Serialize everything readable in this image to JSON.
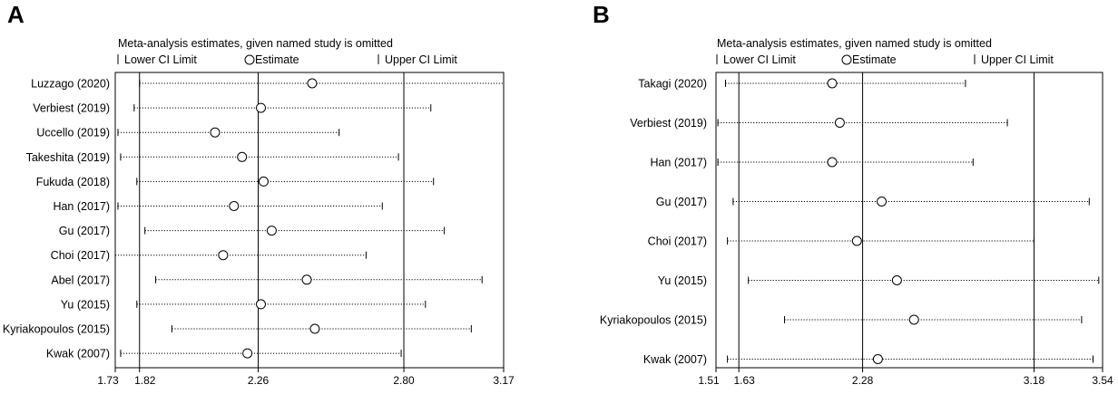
{
  "chart_data": [
    {
      "type": "forest",
      "panel_label": "A",
      "title": "Meta-analysis estimates, given named study is omitted",
      "legend": {
        "lower": "Lower CI Limit",
        "estimate": "Estimate",
        "upper": "Upper CI Limit"
      },
      "reference": {
        "lower": 1.82,
        "estimate": 2.26,
        "upper": 2.8
      },
      "xlim": [
        1.73,
        3.17
      ],
      "xticks": [
        {
          "value": 1.73,
          "label": "1.73"
        },
        {
          "value": 1.82,
          "label": "1.82"
        },
        {
          "value": 2.26,
          "label": "2.26"
        },
        {
          "value": 2.8,
          "label": "2.80"
        },
        {
          "value": 3.17,
          "label": "3.17"
        }
      ],
      "studies": [
        {
          "name": "Luzzago (2020)",
          "lower": 1.82,
          "estimate": 2.46,
          "upper": 3.17
        },
        {
          "name": "Verbiest (2019)",
          "lower": 1.8,
          "estimate": 2.27,
          "upper": 2.9
        },
        {
          "name": "Uccello (2019)",
          "lower": 1.74,
          "estimate": 2.1,
          "upper": 2.56
        },
        {
          "name": "Takeshita (2019)",
          "lower": 1.75,
          "estimate": 2.2,
          "upper": 2.78
        },
        {
          "name": "Fukuda (2018)",
          "lower": 1.81,
          "estimate": 2.28,
          "upper": 2.91
        },
        {
          "name": "Han (2017)",
          "lower": 1.74,
          "estimate": 2.17,
          "upper": 2.72
        },
        {
          "name": "Gu (2017)",
          "lower": 1.84,
          "estimate": 2.31,
          "upper": 2.95
        },
        {
          "name": "Choi (2017)",
          "lower": 1.73,
          "estimate": 2.13,
          "upper": 2.66
        },
        {
          "name": "Abel (2017)",
          "lower": 1.88,
          "estimate": 2.44,
          "upper": 3.09
        },
        {
          "name": "Yu (2015)",
          "lower": 1.81,
          "estimate": 2.27,
          "upper": 2.88
        },
        {
          "name": "Kyriakopoulos (2015)",
          "lower": 1.94,
          "estimate": 2.47,
          "upper": 3.05
        },
        {
          "name": "Kwak (2007)",
          "lower": 1.75,
          "estimate": 2.22,
          "upper": 2.79
        }
      ]
    },
    {
      "type": "forest",
      "panel_label": "B",
      "title": "Meta-analysis estimates, given named study is omitted",
      "legend": {
        "lower": "Lower CI Limit",
        "estimate": "Estimate",
        "upper": "Upper CI Limit"
      },
      "reference": {
        "lower": 1.63,
        "estimate": 2.28,
        "upper": 3.18
      },
      "xlim": [
        1.51,
        3.54
      ],
      "xticks": [
        {
          "value": 1.51,
          "label": "1.51"
        },
        {
          "value": 1.63,
          "label": "1.63"
        },
        {
          "value": 2.28,
          "label": "2.28"
        },
        {
          "value": 3.18,
          "label": "3.18"
        },
        {
          "value": 3.54,
          "label": "3.54"
        }
      ],
      "studies": [
        {
          "name": "Takagi (2020)",
          "lower": 1.56,
          "estimate": 2.12,
          "upper": 2.82
        },
        {
          "name": "Verbiest (2019)",
          "lower": 1.52,
          "estimate": 2.16,
          "upper": 3.04
        },
        {
          "name": "Han (2017)",
          "lower": 1.52,
          "estimate": 2.12,
          "upper": 2.86
        },
        {
          "name": "Gu (2017)",
          "lower": 1.6,
          "estimate": 2.38,
          "upper": 3.47
        },
        {
          "name": "Choi (2017)",
          "lower": 1.57,
          "estimate": 2.25,
          "upper": 3.18
        },
        {
          "name": "Yu (2015)",
          "lower": 1.68,
          "estimate": 2.46,
          "upper": 3.52
        },
        {
          "name": "Kyriakopoulos (2015)",
          "lower": 1.87,
          "estimate": 2.55,
          "upper": 3.43
        },
        {
          "name": "Kwak (2007)",
          "lower": 1.57,
          "estimate": 2.36,
          "upper": 3.49
        }
      ]
    }
  ]
}
